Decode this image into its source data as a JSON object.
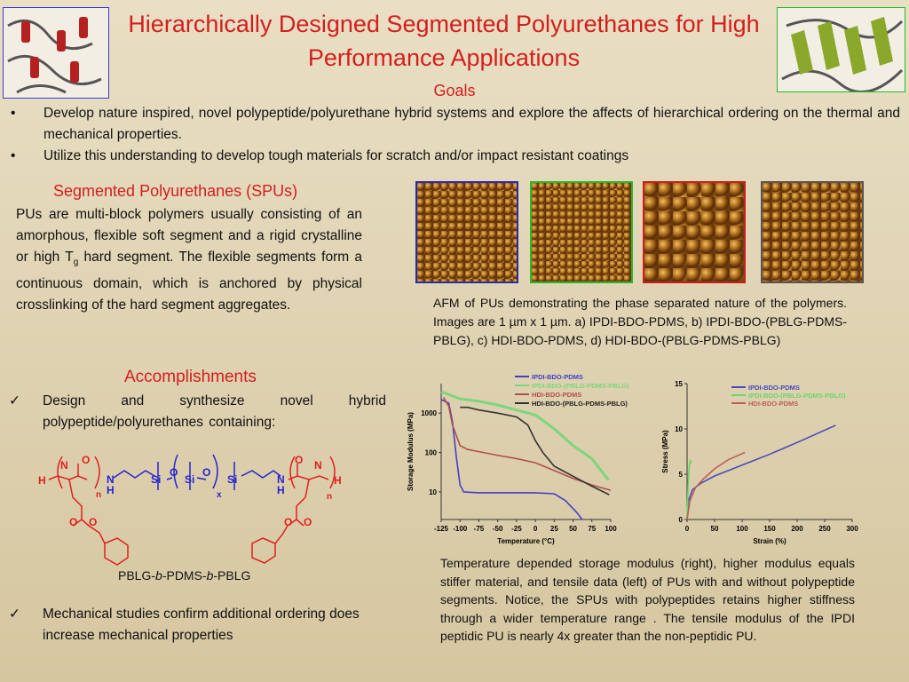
{
  "title": "Hierarchically Designed Segmented Polyurethanes for High Performance Applications",
  "goals": {
    "heading": "Goals",
    "items": [
      "Develop nature inspired, novel polypeptide/polyurethane hybrid systems and explore the affects of hierarchical ordering on the thermal and mechanical properties.",
      "Utilize this understanding to develop tough materials for scratch and/or impact resistant coatings"
    ]
  },
  "spu": {
    "heading": "Segmented Polyurethanes (SPUs)",
    "text_a": "PUs are multi-block polymers usually consisting of an amorphous, flexible soft segment and a rigid crystalline or high T",
    "text_sub": "g",
    "text_b": " hard segment.  The flexible segments form a continuous domain, which is anchored by physical crosslinking of the hard segment aggregates."
  },
  "afm": {
    "frame_colors": [
      "#2a2aa8",
      "#2ab82a",
      "#c81e1e",
      "#555555"
    ],
    "caption": "AFM of PUs demonstrating the phase separated nature of the polymers.  Images are 1 µm x 1 µm. a) IPDI-BDO-PDMS, b) IPDI-BDO-(PBLG-PDMS-PBLG), c) HDI-BDO-PDMS, d) HDI-BDO-(PBLG-PDMS-PBLG)"
  },
  "accomplishments": {
    "heading": "Accomplishments",
    "items": [
      "Design and synthesize novel hybrid polypeptide/polyurethanes containing:",
      "Mechanical studies confirm additional ordering does increase mechanical properties"
    ],
    "check": "✓"
  },
  "structure": {
    "label_pre": "PBLG-",
    "label_b1": "b",
    "label_mid": "-PDMS-",
    "label_b2": "b",
    "label_post": "-PBLG",
    "atoms": {
      "H": "H",
      "N": "N",
      "O": "O",
      "Si": "Si",
      "n": "n",
      "x": "x"
    }
  },
  "figure_caption": "Temperature depended storage modulus (right), higher modulus equals stiffer material, and tensile data (left) of PUs with and without polypeptide segments. Notice, the SPUs with polypeptides retains higher stiffness through a wider temperature range .  The tensile modulus of the IPDI peptidic PU is nearly 4x greater than the non-peptidic PU.",
  "chart_data": [
    {
      "type": "line",
      "xlabel": "Temperature (°C)",
      "ylabel": "Storage Modulus (MPa)",
      "xlim": [
        -125,
        100
      ],
      "ylim": [
        2,
        5600
      ],
      "yscale": "log",
      "xticks": [
        -125,
        -100,
        -75,
        -50,
        -25,
        0,
        25,
        50,
        75,
        100
      ],
      "yticks": [
        10,
        100,
        1000
      ],
      "legend": "top-right",
      "series": [
        {
          "name": "IPDI-BDO-PDMS",
          "color": "#4040c8",
          "points": [
            [
              -125,
              2200
            ],
            [
              -115,
              1800
            ],
            [
              -110,
              600
            ],
            [
              -105,
              80
            ],
            [
              -100,
              15
            ],
            [
              -95,
              10
            ],
            [
              -75,
              9.5
            ],
            [
              0,
              9.5
            ],
            [
              25,
              9
            ],
            [
              40,
              6
            ],
            [
              55,
              3
            ],
            [
              62,
              2
            ]
          ]
        },
        {
          "name": "IPDI-BDO-(PBLG-PDMS-PBLG)",
          "color": "#7cd67c",
          "points": [
            [
              -125,
              3500
            ],
            [
              -100,
              2300
            ],
            [
              -75,
              2000
            ],
            [
              -50,
              1600
            ],
            [
              -25,
              1200
            ],
            [
              0,
              900
            ],
            [
              25,
              400
            ],
            [
              50,
              150
            ],
            [
              75,
              70
            ],
            [
              97,
              20
            ]
          ]
        },
        {
          "name": "HDI-BDO-PDMS",
          "color": "#b0504a",
          "points": [
            [
              -122,
              2500
            ],
            [
              -115,
              1500
            ],
            [
              -110,
              500
            ],
            [
              -100,
              150
            ],
            [
              -90,
              120
            ],
            [
              -75,
              105
            ],
            [
              -50,
              85
            ],
            [
              -25,
              70
            ],
            [
              0,
              55
            ],
            [
              25,
              35
            ],
            [
              50,
              22
            ],
            [
              75,
              15
            ],
            [
              100,
              11
            ]
          ]
        },
        {
          "name": "HDI-BDO-(PBLG-PDMS-PBLG)",
          "color": "#333333",
          "points": [
            [
              -100,
              1400
            ],
            [
              -90,
              1400
            ],
            [
              -75,
              1200
            ],
            [
              -50,
              1000
            ],
            [
              -25,
              800
            ],
            [
              -10,
              500
            ],
            [
              0,
              200
            ],
            [
              10,
              100
            ],
            [
              25,
              45
            ],
            [
              50,
              25
            ],
            [
              75,
              14
            ],
            [
              98,
              8.5
            ]
          ]
        }
      ]
    },
    {
      "type": "line",
      "xlabel": "Strain (%)",
      "ylabel": "Stress (MPa)",
      "xlim": [
        0,
        300
      ],
      "ylim": [
        0,
        15
      ],
      "xticks": [
        0,
        50,
        100,
        150,
        200,
        250,
        300
      ],
      "yticks": [
        0,
        5,
        10,
        15
      ],
      "legend": "top-right",
      "series": [
        {
          "name": "IPDI-BDO-PDMS",
          "color": "#4a4ab8",
          "points": [
            [
              0,
              0
            ],
            [
              2,
              2
            ],
            [
              10,
              3.3
            ],
            [
              25,
              4
            ],
            [
              50,
              4.8
            ],
            [
              100,
              6
            ],
            [
              150,
              7.2
            ],
            [
              200,
              8.5
            ],
            [
              270,
              10.4
            ]
          ]
        },
        {
          "name": "IPDI-BDO-(PBLG-PDMS-PBLG)",
          "color": "#6ad66a",
          "points": [
            [
              0,
              0
            ],
            [
              2,
              4
            ],
            [
              4,
              6
            ],
            [
              6,
              6.5
            ],
            [
              8,
              6.2
            ]
          ]
        },
        {
          "name": "HDI-BDO-PDMS",
          "color": "#b8605a",
          "points": [
            [
              0,
              0
            ],
            [
              5,
              2
            ],
            [
              15,
              3.5
            ],
            [
              30,
              4.5
            ],
            [
              50,
              5.6
            ],
            [
              75,
              6.6
            ],
            [
              105,
              7.4
            ]
          ]
        }
      ]
    }
  ]
}
